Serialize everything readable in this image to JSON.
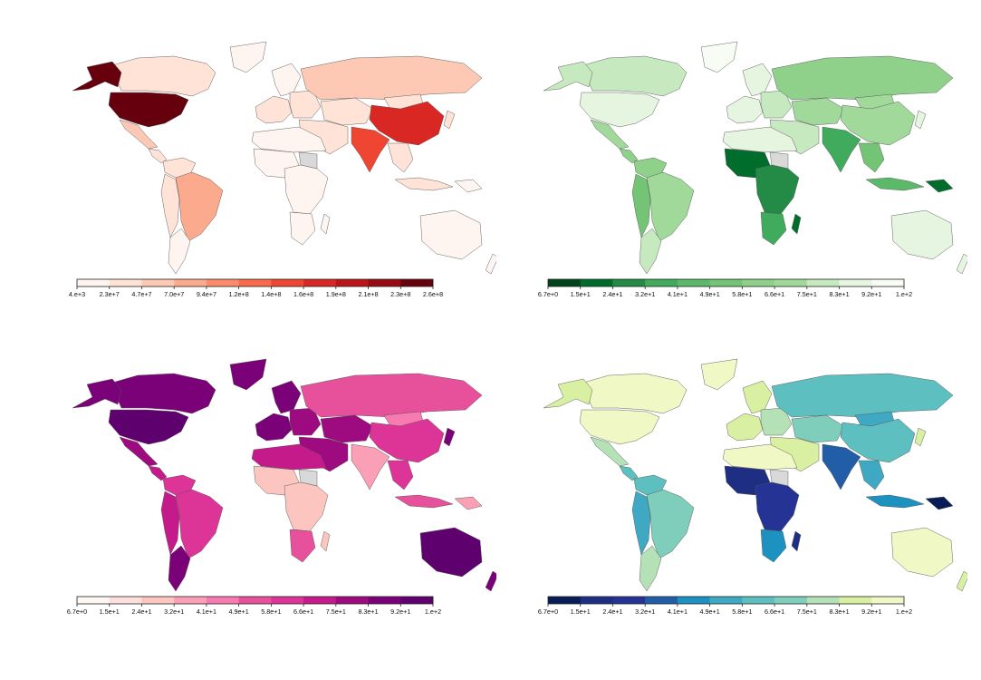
{
  "panels": [
    {
      "id": "tl",
      "colors": [
        "#fff5f0",
        "#fee3d6",
        "#fdc9b4",
        "#fcaa8e",
        "#fc8a6b",
        "#f9694c",
        "#ef4533",
        "#d92723",
        "#bb151a",
        "#970b13",
        "#67000d"
      ],
      "ticks": [
        "4.e+3",
        "2.3e+7",
        "4.7e+7",
        "7.0e+7",
        "9.4e+7",
        "1.2e+8",
        "1.4e+8",
        "1.6e+8",
        "1.9e+8",
        "2.1e+8",
        "2.3e+8",
        "2.6e+8"
      ],
      "regions": {
        "canada": 1,
        "alaska": 10,
        "usa": 10,
        "mexico": 2,
        "central_america": 1,
        "colombia_venezuela": 1,
        "brazil": 3,
        "andes": 1,
        "southern_cone": 0,
        "greenland": 0,
        "western_europe": 1,
        "scandinavia": 0,
        "eastern_europe": 1,
        "russia": 2,
        "kazakh_central_asia": 1,
        "middle_east": 1,
        "north_africa": 0,
        "west_africa": 0,
        "central_east_africa": 0,
        "southern_africa": 0,
        "madagascar": 0,
        "india": 6,
        "china": 7,
        "mongolia": 1,
        "se_asia": 1,
        "indonesia": 1,
        "japan": 1,
        "australia": 0,
        "new_zealand": 0,
        "png": 0,
        "sahel_na": -1
      }
    },
    {
      "id": "tr",
      "colors": [
        "#00441b",
        "#006d2c",
        "#238b45",
        "#41ab5d",
        "#5cb96a",
        "#74c476",
        "#8fd18a",
        "#a1d99b",
        "#c7e9c0",
        "#e5f5e0",
        "#f7fcf5"
      ],
      "ticks": [
        "6.7e+0",
        "1.5e+1",
        "2.4e+1",
        "3.2e+1",
        "4.1e+1",
        "4.9e+1",
        "5.8e+1",
        "6.6e+1",
        "7.5e+1",
        "8.3e+1",
        "9.2e+1",
        "1.e+2"
      ],
      "regions": {
        "canada": 8,
        "alaska": 8,
        "usa": 9,
        "mexico": 7,
        "central_america": 6,
        "colombia_venezuela": 6,
        "brazil": 7,
        "andes": 5,
        "southern_cone": 8,
        "greenland": 10,
        "western_europe": 9,
        "scandinavia": 9,
        "eastern_europe": 8,
        "russia": 6,
        "kazakh_central_asia": 7,
        "middle_east": 8,
        "north_africa": 9,
        "west_africa": 1,
        "central_east_africa": 2,
        "southern_africa": 3,
        "madagascar": 1,
        "india": 3,
        "china": 7,
        "mongolia": 7,
        "se_asia": 5,
        "indonesia": 4,
        "japan": 9,
        "australia": 9,
        "new_zealand": 9,
        "png": 1,
        "sahel_na": -1
      }
    },
    {
      "id": "bl",
      "colors": [
        "#fff7f3",
        "#fde0dd",
        "#fcc5c0",
        "#fa9fb5",
        "#f77ab0",
        "#e7509b",
        "#dd3497",
        "#c51b8a",
        "#9e0a7f",
        "#7a0177",
        "#5e006d"
      ],
      "ticks": [
        "6.7e+0",
        "1.5e+1",
        "2.4e+1",
        "3.2e+1",
        "4.1e+1",
        "4.9e+1",
        "5.8e+1",
        "6.6e+1",
        "7.5e+1",
        "8.3e+1",
        "9.2e+1",
        "1.e+2"
      ],
      "regions": {
        "canada": 9,
        "alaska": 9,
        "usa": 10,
        "mexico": 8,
        "central_america": 7,
        "colombia_venezuela": 6,
        "brazil": 6,
        "andes": 7,
        "southern_cone": 9,
        "greenland": 9,
        "western_europe": 9,
        "scandinavia": 9,
        "eastern_europe": 8,
        "russia": 5,
        "kazakh_central_asia": 8,
        "middle_east": 8,
        "north_africa": 7,
        "west_africa": 2,
        "central_east_africa": 2,
        "southern_africa": 5,
        "madagascar": 2,
        "india": 3,
        "china": 6,
        "mongolia": 4,
        "se_asia": 6,
        "indonesia": 5,
        "japan": 9,
        "australia": 10,
        "new_zealand": 9,
        "png": 3,
        "sahel_na": -1
      }
    },
    {
      "id": "br",
      "colors": [
        "#081d58",
        "#1d2e83",
        "#253494",
        "#225ea8",
        "#1d91c0",
        "#3fa9c4",
        "#5ebfc0",
        "#7fcdbb",
        "#b5e1b6",
        "#d9f0a3",
        "#f0f9c6"
      ],
      "ticks": [
        "6.7e+0",
        "1.5e+1",
        "2.4e+1",
        "3.2e+1",
        "4.1e+1",
        "4.9e+1",
        "5.8e+1",
        "6.6e+1",
        "7.5e+1",
        "8.3e+1",
        "9.2e+1",
        "1.e+2"
      ],
      "regions": {
        "canada": 10,
        "alaska": 9,
        "usa": 10,
        "mexico": 8,
        "central_america": 6,
        "colombia_venezuela": 6,
        "brazil": 7,
        "andes": 5,
        "southern_cone": 8,
        "greenland": 10,
        "western_europe": 9,
        "scandinavia": 9,
        "eastern_europe": 8,
        "russia": 6,
        "kazakh_central_asia": 7,
        "middle_east": 9,
        "north_africa": 10,
        "west_africa": 1,
        "central_east_africa": 2,
        "southern_africa": 4,
        "madagascar": 1,
        "india": 3,
        "china": 6,
        "mongolia": 5,
        "se_asia": 5,
        "indonesia": 4,
        "japan": 9,
        "australia": 10,
        "new_zealand": 9,
        "png": 0,
        "sahel_na": -1
      }
    }
  ],
  "no_data_color": "#d9d9d9"
}
